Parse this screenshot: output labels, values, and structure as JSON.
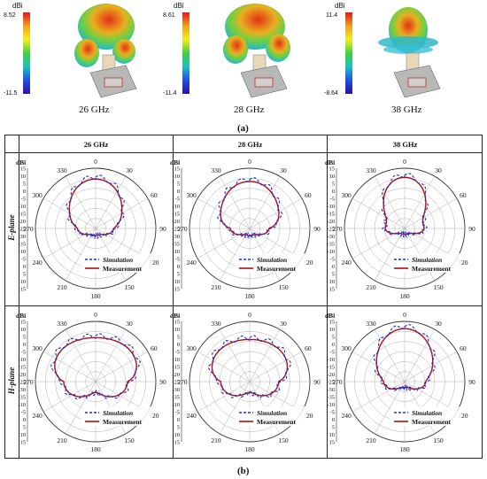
{
  "top_row": {
    "unit": "dBi",
    "items": [
      {
        "max": "8.52",
        "min": "-11.5",
        "caption": "26 GHz"
      },
      {
        "max": "8.61",
        "min": "-11.4",
        "caption": "28 GHz"
      },
      {
        "max": "11.4",
        "min": "-8.64",
        "caption": "38 GHz"
      }
    ],
    "label": "(a)"
  },
  "bottom_label": "(b)",
  "table": {
    "col_headers": [
      "26 GHz",
      "28 GHz",
      "38 GHz"
    ],
    "row_headers": [
      "E-plane",
      "H-plane"
    ]
  },
  "legend": {
    "simulation": "Simulation",
    "measurement": "Measurement"
  },
  "colors": {
    "simulation": "#1a2fd6",
    "measurement": "#b01010"
  },
  "polar": {
    "radial_unit": "dBi",
    "radial_ticks": [
      "15",
      "10",
      "5",
      "0",
      "-5",
      "-10",
      "-15",
      "-20",
      "-25",
      "-30",
      "-35",
      "-40",
      "-45",
      "-50",
      "-55"
    ],
    "radial_ticks_display": [
      "15",
      "10",
      "5",
      "0",
      "-5",
      "-10",
      "-15",
      "-20",
      "-25",
      "-30",
      "-35",
      "-10",
      "-5",
      "0",
      "5",
      "10",
      "15"
    ],
    "angle_labels": [
      "0",
      "30",
      "60",
      "90",
      "120",
      "150",
      "180",
      "210",
      "240",
      "270",
      "300",
      "330"
    ]
  },
  "chart_data": [
    {
      "type": "line",
      "title": "E-plane 26 GHz",
      "r_range": [
        -15,
        15
      ]
    },
    {
      "type": "line",
      "title": "E-plane 28 GHz",
      "r_range": [
        -15,
        15
      ]
    },
    {
      "type": "line",
      "title": "E-plane 38 GHz",
      "r_range": [
        -15,
        15
      ]
    },
    {
      "type": "line",
      "title": "H-plane 26 GHz",
      "r_range": [
        -15,
        15
      ]
    },
    {
      "type": "line",
      "title": "H-plane 28 GHz",
      "r_range": [
        -15,
        15
      ]
    },
    {
      "type": "line",
      "title": "H-plane 38 GHz",
      "r_range": [
        -15,
        15
      ]
    }
  ]
}
